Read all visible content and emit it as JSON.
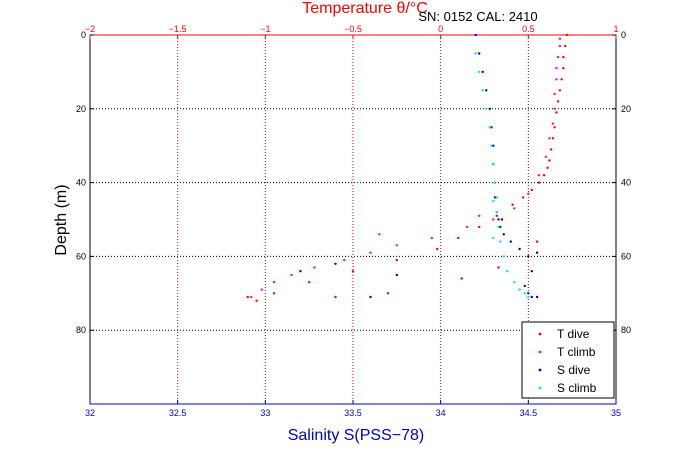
{
  "chart_data": {
    "type": "scatter",
    "title": "Temperature θ/°C",
    "subtitle": "SN: 0152  CAL: 2410",
    "xlabel_bottom": "Salinity S(PSS−78)",
    "xlabel_top": "Temperature θ/°C",
    "ylabel": "Depth (m)",
    "x_bottom_lim": [
      32,
      35
    ],
    "x_top_lim": [
      -2,
      1
    ],
    "ylim": [
      0,
      100
    ],
    "y_reversed": true,
    "grid": true,
    "legend_position": "bottom-right",
    "x_bottom_ticks": [
      "32",
      "32.5",
      "33",
      "33.5",
      "34",
      "34.5",
      "35"
    ],
    "x_top_ticks": [
      "-2",
      "-1.5",
      "-1",
      "-0.5",
      "0",
      "0.5",
      "1"
    ],
    "y_ticks": [
      "0",
      "20",
      "40",
      "60",
      "80"
    ],
    "colors": {
      "temperature_axis": "#ff0000",
      "salinity_axis": "#0000cc",
      "t_dive": "#ff0000",
      "t_climb": "#ff00ff",
      "s_dive": "#0000cc",
      "s_climb": "#00e5e5"
    },
    "series": [
      {
        "name": "T dive",
        "axis": "temperature",
        "x": [
          0.72,
          0.71,
          0.7,
          0.7,
          0.69,
          0.68,
          0.67,
          0.66,
          0.65,
          0.64,
          0.63,
          0.62,
          0.61,
          0.59,
          0.56,
          0.52,
          0.47,
          0.41,
          0.32,
          0.22,
          0.1,
          -0.02,
          -0.25,
          -0.5,
          -0.75,
          -0.95,
          -1.05,
          0.55,
          0.5,
          0.33,
          0.12,
          -0.3,
          -0.6,
          -1.1
        ],
        "y": [
          0,
          3,
          6,
          9,
          12,
          15,
          18,
          21,
          25,
          28,
          31,
          34,
          36,
          38,
          40,
          42,
          44,
          46,
          49,
          52,
          55,
          58,
          61,
          64,
          67,
          70,
          72,
          56,
          60,
          63,
          66,
          70,
          71,
          71
        ]
      },
      {
        "name": "T climb",
        "axis": "temperature",
        "x": [
          -1.08,
          -1.02,
          -0.95,
          -0.85,
          -0.72,
          -0.55,
          -0.4,
          -0.25,
          -0.05,
          0.15,
          0.3,
          0.42,
          0.5,
          0.56,
          0.6,
          0.62,
          0.64,
          0.65,
          0.65,
          0.66,
          0.66,
          0.67,
          0.68,
          0.68,
          -0.35,
          0.22
        ],
        "y": [
          71,
          69,
          67,
          65,
          63,
          61,
          59,
          57,
          55,
          52,
          50,
          47,
          43,
          38,
          33,
          28,
          24,
          20,
          16,
          12,
          9,
          6,
          3,
          1,
          54,
          49
        ]
      },
      {
        "name": "S dive",
        "axis": "salinity",
        "x": [
          34.2,
          34.22,
          34.24,
          34.26,
          34.28,
          34.29,
          34.3,
          34.3,
          34.31,
          34.31,
          34.32,
          34.33,
          34.34,
          34.36,
          34.4,
          34.45,
          34.5,
          34.55,
          34.52,
          34.48,
          34.5,
          34.52,
          34.55,
          33.2,
          33.4,
          33.75,
          33.6,
          34.35
        ],
        "y": [
          0,
          5,
          10,
          15,
          20,
          25,
          30,
          35,
          40,
          44,
          48,
          50,
          52,
          54,
          56,
          58,
          60,
          59,
          64,
          68,
          70,
          71,
          71,
          64,
          62,
          65,
          71,
          50
        ]
      },
      {
        "name": "S climb",
        "axis": "salinity",
        "x": [
          34.5,
          34.48,
          34.45,
          34.42,
          34.38,
          34.36,
          34.34,
          34.33,
          34.32,
          34.32,
          34.31,
          34.3,
          34.29,
          34.28,
          34.26,
          34.24,
          34.22,
          34.2,
          34.3,
          34.3
        ],
        "y": [
          71,
          70,
          69,
          67,
          64,
          60,
          56,
          52,
          48,
          44,
          40,
          35,
          30,
          25,
          20,
          15,
          10,
          5,
          45,
          55
        ]
      }
    ]
  }
}
